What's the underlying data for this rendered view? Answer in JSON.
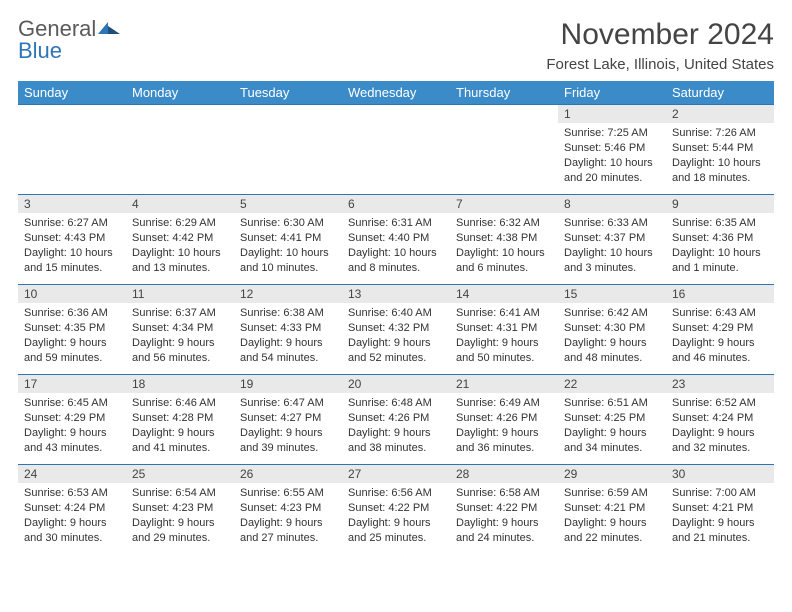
{
  "logo": {
    "text1": "General",
    "text2": "Blue"
  },
  "title": "November 2024",
  "subtitle": "Forest Lake, Illinois, United States",
  "colors": {
    "header_bg": "#3b8bc9",
    "border": "#2e75b6",
    "daynum_bg": "#e9e9e9",
    "text": "#333333"
  },
  "weekdays": [
    "Sunday",
    "Monday",
    "Tuesday",
    "Wednesday",
    "Thursday",
    "Friday",
    "Saturday"
  ],
  "weeks": [
    [
      null,
      null,
      null,
      null,
      null,
      {
        "n": "1",
        "sr": "Sunrise: 7:25 AM",
        "ss": "Sunset: 5:46 PM",
        "dl": "Daylight: 10 hours and 20 minutes."
      },
      {
        "n": "2",
        "sr": "Sunrise: 7:26 AM",
        "ss": "Sunset: 5:44 PM",
        "dl": "Daylight: 10 hours and 18 minutes."
      }
    ],
    [
      {
        "n": "3",
        "sr": "Sunrise: 6:27 AM",
        "ss": "Sunset: 4:43 PM",
        "dl": "Daylight: 10 hours and 15 minutes."
      },
      {
        "n": "4",
        "sr": "Sunrise: 6:29 AM",
        "ss": "Sunset: 4:42 PM",
        "dl": "Daylight: 10 hours and 13 minutes."
      },
      {
        "n": "5",
        "sr": "Sunrise: 6:30 AM",
        "ss": "Sunset: 4:41 PM",
        "dl": "Daylight: 10 hours and 10 minutes."
      },
      {
        "n": "6",
        "sr": "Sunrise: 6:31 AM",
        "ss": "Sunset: 4:40 PM",
        "dl": "Daylight: 10 hours and 8 minutes."
      },
      {
        "n": "7",
        "sr": "Sunrise: 6:32 AM",
        "ss": "Sunset: 4:38 PM",
        "dl": "Daylight: 10 hours and 6 minutes."
      },
      {
        "n": "8",
        "sr": "Sunrise: 6:33 AM",
        "ss": "Sunset: 4:37 PM",
        "dl": "Daylight: 10 hours and 3 minutes."
      },
      {
        "n": "9",
        "sr": "Sunrise: 6:35 AM",
        "ss": "Sunset: 4:36 PM",
        "dl": "Daylight: 10 hours and 1 minute."
      }
    ],
    [
      {
        "n": "10",
        "sr": "Sunrise: 6:36 AM",
        "ss": "Sunset: 4:35 PM",
        "dl": "Daylight: 9 hours and 59 minutes."
      },
      {
        "n": "11",
        "sr": "Sunrise: 6:37 AM",
        "ss": "Sunset: 4:34 PM",
        "dl": "Daylight: 9 hours and 56 minutes."
      },
      {
        "n": "12",
        "sr": "Sunrise: 6:38 AM",
        "ss": "Sunset: 4:33 PM",
        "dl": "Daylight: 9 hours and 54 minutes."
      },
      {
        "n": "13",
        "sr": "Sunrise: 6:40 AM",
        "ss": "Sunset: 4:32 PM",
        "dl": "Daylight: 9 hours and 52 minutes."
      },
      {
        "n": "14",
        "sr": "Sunrise: 6:41 AM",
        "ss": "Sunset: 4:31 PM",
        "dl": "Daylight: 9 hours and 50 minutes."
      },
      {
        "n": "15",
        "sr": "Sunrise: 6:42 AM",
        "ss": "Sunset: 4:30 PM",
        "dl": "Daylight: 9 hours and 48 minutes."
      },
      {
        "n": "16",
        "sr": "Sunrise: 6:43 AM",
        "ss": "Sunset: 4:29 PM",
        "dl": "Daylight: 9 hours and 46 minutes."
      }
    ],
    [
      {
        "n": "17",
        "sr": "Sunrise: 6:45 AM",
        "ss": "Sunset: 4:29 PM",
        "dl": "Daylight: 9 hours and 43 minutes."
      },
      {
        "n": "18",
        "sr": "Sunrise: 6:46 AM",
        "ss": "Sunset: 4:28 PM",
        "dl": "Daylight: 9 hours and 41 minutes."
      },
      {
        "n": "19",
        "sr": "Sunrise: 6:47 AM",
        "ss": "Sunset: 4:27 PM",
        "dl": "Daylight: 9 hours and 39 minutes."
      },
      {
        "n": "20",
        "sr": "Sunrise: 6:48 AM",
        "ss": "Sunset: 4:26 PM",
        "dl": "Daylight: 9 hours and 38 minutes."
      },
      {
        "n": "21",
        "sr": "Sunrise: 6:49 AM",
        "ss": "Sunset: 4:26 PM",
        "dl": "Daylight: 9 hours and 36 minutes."
      },
      {
        "n": "22",
        "sr": "Sunrise: 6:51 AM",
        "ss": "Sunset: 4:25 PM",
        "dl": "Daylight: 9 hours and 34 minutes."
      },
      {
        "n": "23",
        "sr": "Sunrise: 6:52 AM",
        "ss": "Sunset: 4:24 PM",
        "dl": "Daylight: 9 hours and 32 minutes."
      }
    ],
    [
      {
        "n": "24",
        "sr": "Sunrise: 6:53 AM",
        "ss": "Sunset: 4:24 PM",
        "dl": "Daylight: 9 hours and 30 minutes."
      },
      {
        "n": "25",
        "sr": "Sunrise: 6:54 AM",
        "ss": "Sunset: 4:23 PM",
        "dl": "Daylight: 9 hours and 29 minutes."
      },
      {
        "n": "26",
        "sr": "Sunrise: 6:55 AM",
        "ss": "Sunset: 4:23 PM",
        "dl": "Daylight: 9 hours and 27 minutes."
      },
      {
        "n": "27",
        "sr": "Sunrise: 6:56 AM",
        "ss": "Sunset: 4:22 PM",
        "dl": "Daylight: 9 hours and 25 minutes."
      },
      {
        "n": "28",
        "sr": "Sunrise: 6:58 AM",
        "ss": "Sunset: 4:22 PM",
        "dl": "Daylight: 9 hours and 24 minutes."
      },
      {
        "n": "29",
        "sr": "Sunrise: 6:59 AM",
        "ss": "Sunset: 4:21 PM",
        "dl": "Daylight: 9 hours and 22 minutes."
      },
      {
        "n": "30",
        "sr": "Sunrise: 7:00 AM",
        "ss": "Sunset: 4:21 PM",
        "dl": "Daylight: 9 hours and 21 minutes."
      }
    ]
  ]
}
